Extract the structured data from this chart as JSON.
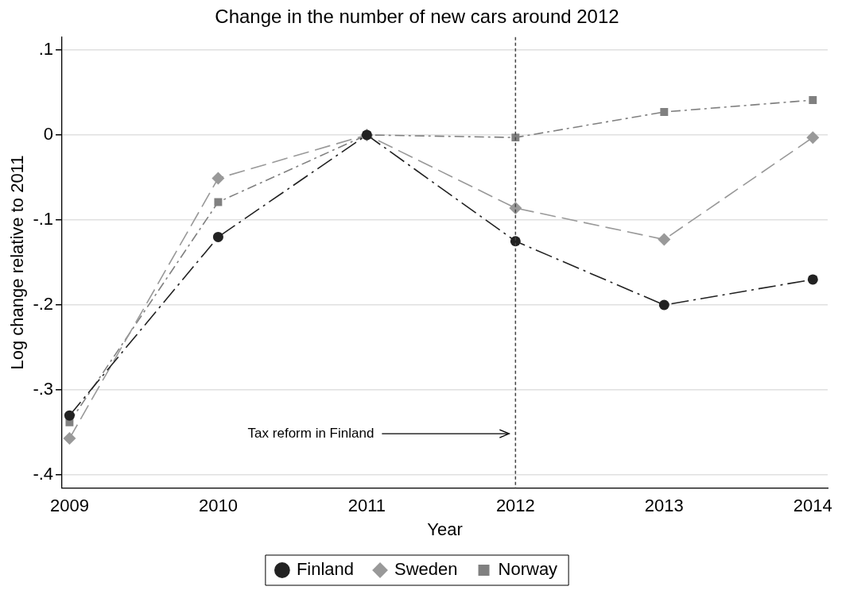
{
  "chart_data": {
    "type": "line",
    "title": "Change in the number of new cars around 2012",
    "xlabel": "Year",
    "ylabel": "Log change relative to 2011",
    "x": [
      2009,
      2010,
      2011,
      2012,
      2013,
      2014
    ],
    "series": [
      {
        "name": "Finland",
        "color": "#222222",
        "marker": "circle",
        "values": [
          -0.33,
          -0.12,
          0,
          -0.125,
          -0.2,
          -0.17
        ]
      },
      {
        "name": "Sweden",
        "color": "#999999",
        "marker": "diamond",
        "values": [
          -0.357,
          -0.051,
          0,
          -0.086,
          -0.123,
          -0.003
        ]
      },
      {
        "name": "Norway",
        "color": "#808080",
        "marker": "square",
        "values": [
          -0.338,
          -0.079,
          0,
          -0.003,
          0.027,
          0.041
        ]
      }
    ],
    "xlim": [
      2008.95,
      2014.1
    ],
    "xticks": [
      2009,
      2010,
      2011,
      2012,
      2013,
      2014
    ],
    "ylim": [
      -0.415,
      0.115
    ],
    "yticks": [
      {
        "value": 0.1,
        "label": ".1"
      },
      0,
      {
        "value": -0.1,
        "label": "-.1"
      },
      {
        "value": -0.2,
        "label": "-.2"
      },
      {
        "value": -0.3,
        "label": "-.3"
      },
      {
        "value": -0.4,
        "label": "-.4"
      }
    ],
    "grid": "y",
    "legend": "bottom",
    "line_style": "dashed",
    "ref_lines": [
      {
        "axis": "x",
        "value": 2012,
        "color": "#444444",
        "line_style": "dotted",
        "label": "Tax reform in Finland"
      }
    ]
  }
}
